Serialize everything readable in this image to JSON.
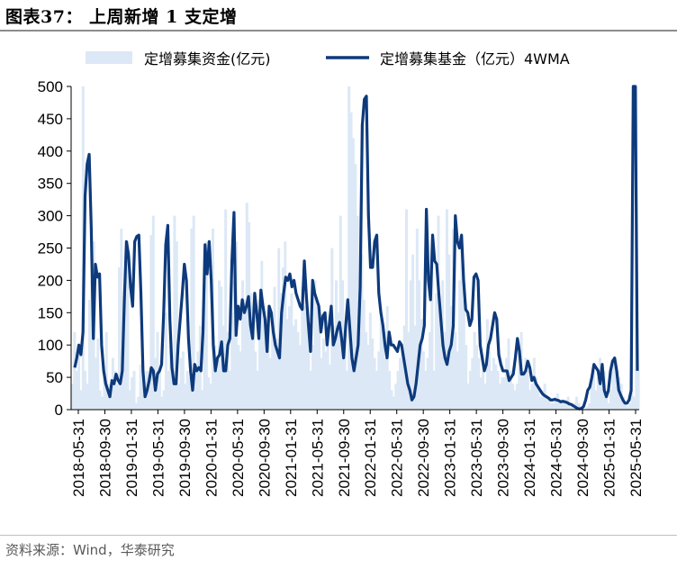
{
  "title": "图表37： 上周新增 1 支定增",
  "source": "资料来源：Wind，华泰研究",
  "chart_data": {
    "type": "area",
    "ylim": [
      0,
      500
    ],
    "yticks": [
      0,
      50,
      100,
      150,
      200,
      250,
      300,
      350,
      400,
      450,
      500
    ],
    "x_tick_labels": [
      "2018-05-31",
      "2018-09-30",
      "2019-01-31",
      "2019-05-31",
      "2019-09-30",
      "2020-01-31",
      "2020-05-31",
      "2020-09-30",
      "2021-01-31",
      "2021-05-31",
      "2021-09-30",
      "2022-01-31",
      "2022-05-31",
      "2022-09-30",
      "2023-01-31",
      "2023-05-31",
      "2023-09-30",
      "2024-01-31",
      "2024-05-31",
      "2024-09-30",
      "2025-01-31",
      "2025-05-31"
    ],
    "legend_position": "top",
    "series": [
      {
        "name": "定增募集资金(亿元)",
        "kind": "area",
        "color": "#dce8f5",
        "values": [
          40,
          120,
          60,
          90,
          30,
          500,
          60,
          40,
          170,
          200,
          260,
          80,
          110,
          30,
          20,
          50,
          120,
          40,
          30,
          80,
          60,
          40,
          220,
          280,
          130,
          180,
          260,
          30,
          50,
          60,
          10,
          20,
          70,
          90,
          30,
          60,
          40,
          270,
          300,
          80,
          120,
          60,
          20,
          30,
          150,
          60,
          100,
          50,
          300,
          260,
          40,
          80,
          90,
          40,
          60,
          50,
          280,
          300,
          70,
          90,
          130,
          30,
          200,
          260,
          50,
          40,
          280,
          100,
          60,
          200,
          190,
          130,
          310,
          120,
          60,
          150,
          200,
          260,
          100,
          90,
          200,
          170,
          320,
          290,
          180,
          120,
          90,
          60,
          170,
          230,
          160,
          140,
          120,
          80,
          150,
          190,
          110,
          250,
          180,
          220,
          260,
          140,
          160,
          180,
          130,
          140,
          120,
          100,
          190,
          160,
          150,
          120,
          60,
          100,
          200,
          160,
          140,
          80,
          110,
          90,
          130,
          70,
          250,
          130,
          200,
          150,
          300,
          200,
          120,
          60,
          500,
          460,
          420,
          380,
          300,
          200,
          240,
          170,
          120,
          100,
          150,
          110,
          80,
          60,
          90,
          140,
          130,
          80,
          160,
          60,
          30,
          20,
          40,
          60,
          80,
          90,
          130,
          310,
          120,
          200,
          240,
          130,
          280,
          200,
          140,
          90,
          60,
          80,
          120,
          230,
          60,
          180,
          300,
          150,
          200,
          120,
          310,
          240,
          160,
          280,
          120,
          90,
          200,
          260,
          170,
          100,
          40,
          60,
          80,
          120,
          100,
          80,
          50,
          60,
          40,
          140,
          90,
          60,
          80,
          70,
          60,
          40,
          50,
          50,
          80,
          110,
          60,
          40,
          30,
          40,
          90,
          120,
          60,
          80,
          60,
          30,
          40,
          80,
          50,
          30,
          20,
          30,
          40,
          20,
          20,
          10,
          10,
          20,
          25,
          15,
          10,
          10,
          15,
          20,
          5,
          10,
          10,
          20,
          10,
          5,
          2,
          0,
          5,
          10,
          40,
          60,
          30,
          50,
          80,
          40,
          60,
          20,
          10,
          30,
          70,
          80,
          60,
          50,
          40,
          20,
          10,
          5,
          10,
          30,
          20,
          500,
          60
        ]
      },
      {
        "name": "定增募集基金（亿元）4WMA",
        "kind": "line",
        "color": "#0d3a7c",
        "values": [
          65,
          80,
          100,
          85,
          120,
          330,
          380,
          395,
          280,
          110,
          225,
          205,
          210,
          100,
          60,
          40,
          30,
          20,
          45,
          40,
          55,
          45,
          40,
          60,
          170,
          260,
          240,
          190,
          160,
          260,
          268,
          270,
          180,
          60,
          20,
          30,
          45,
          65,
          60,
          30,
          55,
          60,
          70,
          150,
          255,
          285,
          140,
          65,
          40,
          40,
          100,
          140,
          180,
          225,
          200,
          110,
          60,
          30,
          70,
          60,
          65,
          60,
          120,
          255,
          210,
          260,
          200,
          100,
          60,
          80,
          85,
          105,
          60,
          60,
          100,
          110,
          230,
          305,
          115,
          160,
          140,
          170,
          150,
          160,
          175,
          130,
          110,
          180,
          150,
          110,
          185,
          160,
          140,
          90,
          160,
          150,
          120,
          100,
          90,
          80,
          150,
          180,
          205,
          200,
          210,
          190,
          200,
          180,
          170,
          160,
          155,
          230,
          175,
          130,
          90,
          200,
          180,
          170,
          160,
          120,
          145,
          150,
          100,
          130,
          160,
          100,
          110,
          125,
          135,
          110,
          80,
          130,
          170,
          125,
          80,
          60,
          80,
          100,
          190,
          440,
          480,
          485,
          300,
          220,
          220,
          260,
          270,
          180,
          150,
          130,
          100,
          80,
          120,
          100,
          100,
          95,
          90,
          105,
          100,
          80,
          60,
          40,
          30,
          15,
          20,
          40,
          70,
          100,
          110,
          130,
          310,
          200,
          170,
          270,
          230,
          225,
          180,
          140,
          100,
          80,
          70,
          90,
          100,
          130,
          300,
          260,
          250,
          270,
          200,
          155,
          150,
          130,
          140,
          205,
          210,
          200,
          100,
          80,
          60,
          70,
          100,
          110,
          130,
          150,
          140,
          85,
          70,
          60,
          60,
          60,
          45,
          50,
          55,
          80,
          110,
          90,
          55,
          55,
          60,
          75,
          65,
          45,
          50,
          40,
          35,
          30,
          25,
          22,
          20,
          18,
          15,
          15,
          16,
          15,
          14,
          12,
          13,
          12,
          11,
          9,
          8,
          6,
          4,
          2,
          1,
          2,
          5,
          15,
          30,
          35,
          50,
          70,
          65,
          60,
          40,
          70,
          30,
          20,
          30,
          60,
          75,
          80,
          60,
          30,
          22,
          15,
          10,
          10,
          15,
          30,
          500,
          500,
          60
        ]
      }
    ]
  }
}
